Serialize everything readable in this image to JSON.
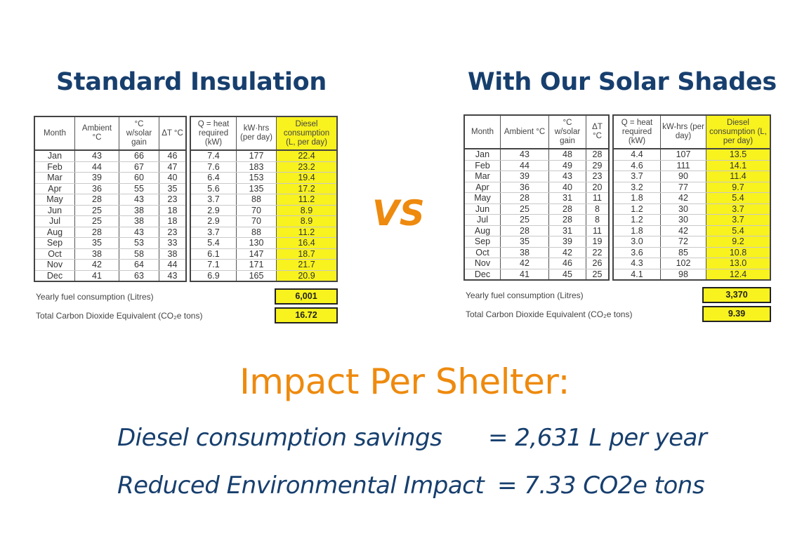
{
  "left": {
    "heading": "Standard Insulation",
    "headers_a": [
      "Month",
      "Ambient °C",
      "°C w/solar gain",
      "ΔT °C"
    ],
    "headers_b": [
      "Q = heat required (kW)",
      "kW·hrs (per day)",
      "Diesel consumption (L, per day)"
    ],
    "rows": [
      [
        "Jan",
        "43",
        "66",
        "46",
        "7.4",
        "177",
        "22.4"
      ],
      [
        "Feb",
        "44",
        "67",
        "47",
        "7.6",
        "183",
        "23.2"
      ],
      [
        "Mar",
        "39",
        "60",
        "40",
        "6.4",
        "153",
        "19.4"
      ],
      [
        "Apr",
        "36",
        "55",
        "35",
        "5.6",
        "135",
        "17.2"
      ],
      [
        "May",
        "28",
        "43",
        "23",
        "3.7",
        "88",
        "11.2"
      ],
      [
        "Jun",
        "25",
        "38",
        "18",
        "2.9",
        "70",
        "8.9"
      ],
      [
        "Jul",
        "25",
        "38",
        "18",
        "2.9",
        "70",
        "8.9"
      ],
      [
        "Aug",
        "28",
        "43",
        "23",
        "3.7",
        "88",
        "11.2"
      ],
      [
        "Sep",
        "35",
        "53",
        "33",
        "5.4",
        "130",
        "16.4"
      ],
      [
        "Oct",
        "38",
        "58",
        "38",
        "6.1",
        "147",
        "18.7"
      ],
      [
        "Nov",
        "42",
        "64",
        "44",
        "7.1",
        "171",
        "21.7"
      ],
      [
        "Dec",
        "41",
        "63",
        "43",
        "6.9",
        "165",
        "20.9"
      ]
    ],
    "yearly_label": "Yearly fuel consumption (Litres)",
    "yearly_value": "6,001",
    "co2_label": "Total Carbon Dioxide Equivalent (CO₂e tons)",
    "co2_value": "16.72"
  },
  "vs": "VS",
  "right": {
    "heading": "With Our Solar Shades",
    "headers_a": [
      "Month",
      "Ambient °C",
      "°C w/solar gain",
      "ΔT °C"
    ],
    "headers_b": [
      "Q = heat required (kW)",
      "kW-hrs (per day)",
      "Diesel consumption (L, per day)"
    ],
    "rows": [
      [
        "Jan",
        "43",
        "48",
        "28",
        "4.4",
        "107",
        "13.5"
      ],
      [
        "Feb",
        "44",
        "49",
        "29",
        "4.6",
        "111",
        "14.1"
      ],
      [
        "Mar",
        "39",
        "43",
        "23",
        "3.7",
        "90",
        "11.4"
      ],
      [
        "Apr",
        "36",
        "40",
        "20",
        "3.2",
        "77",
        "9.7"
      ],
      [
        "May",
        "28",
        "31",
        "11",
        "1.8",
        "42",
        "5.4"
      ],
      [
        "Jun",
        "25",
        "28",
        "8",
        "1.2",
        "30",
        "3.7"
      ],
      [
        "Jul",
        "25",
        "28",
        "8",
        "1.2",
        "30",
        "3.7"
      ],
      [
        "Aug",
        "28",
        "31",
        "11",
        "1.8",
        "42",
        "5.4"
      ],
      [
        "Sep",
        "35",
        "39",
        "19",
        "3.0",
        "72",
        "9.2"
      ],
      [
        "Oct",
        "38",
        "42",
        "22",
        "3.6",
        "85",
        "10.8"
      ],
      [
        "Nov",
        "42",
        "46",
        "26",
        "4.3",
        "102",
        "13.0"
      ],
      [
        "Dec",
        "41",
        "45",
        "25",
        "4.1",
        "98",
        "12.4"
      ]
    ],
    "yearly_label": "Yearly fuel consumption (Litres)",
    "yearly_value": "3,370",
    "co2_label": "Total Carbon Dioxide Equivalent (CO₂e tons)",
    "co2_value": "9.39"
  },
  "impact": {
    "title": "Impact Per Shelter:",
    "lines": [
      {
        "label": "Diesel consumption savings",
        "value": "= 2,631 L per year"
      },
      {
        "label": "Reduced Environmental Impact",
        "value": "= 7.33 CO2e tons"
      }
    ]
  },
  "colors": {
    "navy": "#173f6e",
    "orange": "#ee8a0e",
    "highlight_yellow": "#f8f21e"
  }
}
